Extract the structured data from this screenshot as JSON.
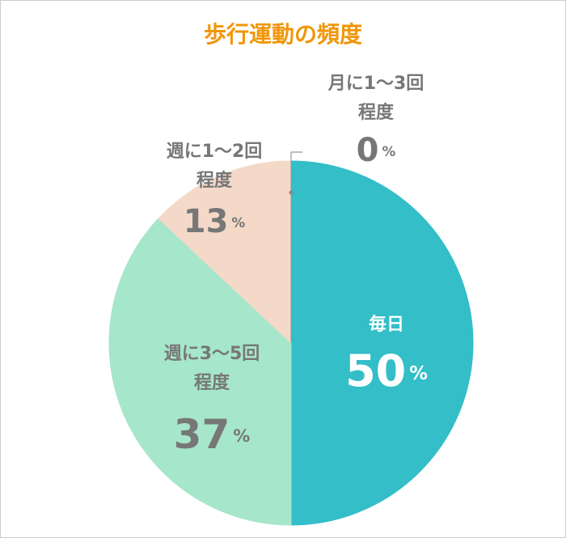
{
  "chart_data": {
    "type": "pie",
    "title": "歩行運動の頻度",
    "categories": [
      [
        "毎日"
      ],
      [
        "週に3～5回",
        "程度"
      ],
      [
        "週に1～2回",
        "程度"
      ],
      [
        "月に1～3回",
        "程度"
      ]
    ],
    "values": [
      50,
      37,
      13,
      0
    ],
    "unit_label": "%",
    "colors": [
      "#33bec8",
      "#a6e6cb",
      "#f4d9c8",
      "#999999"
    ],
    "start_angle": "top",
    "direction": "clockwise"
  }
}
